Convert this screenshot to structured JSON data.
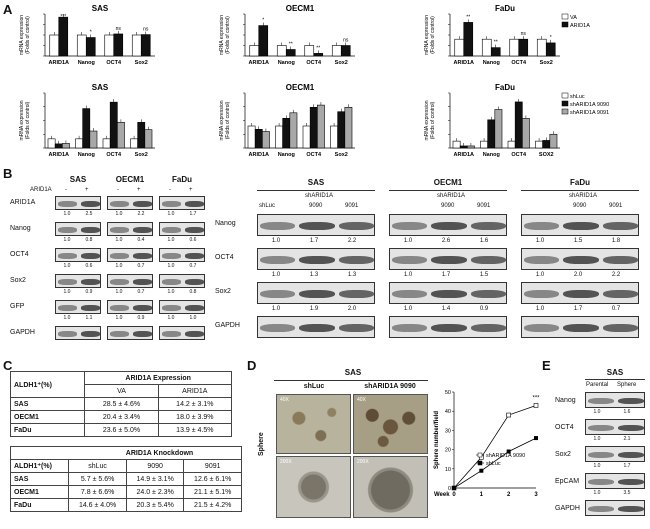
{
  "panels": {
    "a": "A",
    "b": "B",
    "c": "C",
    "d": "D",
    "e": "E"
  },
  "colors": {
    "open": "#ffffff",
    "black": "#111111",
    "gray": "#a8a8a8"
  },
  "chartA": {
    "titles": [
      "SAS",
      "OECM1",
      "FaDu"
    ],
    "ylabel_line1": "mRNA expression",
    "ylabel_line2": "(Folds of control)",
    "categories": [
      "ARID1A",
      "Nanog",
      "OCT4",
      "Sox2"
    ],
    "legend": [
      "VA",
      "ARID1A"
    ],
    "sig": [
      [
        "***",
        "*",
        "ns",
        "ns"
      ],
      [
        "*",
        "**",
        "**",
        "ns"
      ],
      [
        "**",
        "**",
        "ns",
        "*"
      ]
    ]
  },
  "chartB": {
    "titles": [
      "SAS",
      "OECM1",
      "FaDu"
    ],
    "ylabel_line1": "mRNA expression",
    "ylabel_line2": "(Folds of control)",
    "categories": [
      [
        "ARID1A",
        "Nanog",
        "OCT4",
        "Sox2"
      ],
      [
        "ARID1A",
        "Nanog",
        "OCT4",
        "Sox2"
      ],
      [
        "ARID1A",
        "Nanog",
        "OCT4",
        "SOX2"
      ]
    ],
    "legend": [
      "shLuc",
      "shARID1A 9090",
      "shARID1A 9091"
    ]
  },
  "chart_data": [
    {
      "type": "bar",
      "title": "SAS",
      "categories": [
        "ARID1A",
        "Nanog",
        "OCT4",
        "Sox2"
      ],
      "ylim": [
        0,
        2.0
      ],
      "series": [
        {
          "name": "VA",
          "values": [
            1,
            1,
            1,
            1
          ]
        },
        {
          "name": "ARID1A",
          "values": [
            1.85,
            0.88,
            1.05,
            1.02
          ]
        }
      ]
    },
    {
      "type": "bar",
      "title": "OECM1",
      "categories": [
        "ARID1A",
        "Nanog",
        "OCT4",
        "Sox2"
      ],
      "ylim": [
        0,
        4.0
      ],
      "series": [
        {
          "name": "VA",
          "values": [
            1,
            1,
            1,
            1
          ]
        },
        {
          "name": "ARID1A",
          "values": [
            2.9,
            0.62,
            0.25,
            1.0
          ]
        }
      ]
    },
    {
      "type": "bar",
      "title": "FaDu",
      "categories": [
        "ARID1A",
        "Nanog",
        "OCT4",
        "Sox2"
      ],
      "ylim": [
        0,
        2.5
      ],
      "series": [
        {
          "name": "VA",
          "values": [
            1,
            1,
            1,
            1
          ]
        },
        {
          "name": "ARID1A",
          "values": [
            2.0,
            0.5,
            1.0,
            0.78
          ]
        }
      ]
    },
    {
      "type": "bar",
      "title": "SAS",
      "categories": [
        "ARID1A",
        "Nanog",
        "OCT4",
        "Sox2"
      ],
      "ylim": [
        0,
        6
      ],
      "series": [
        {
          "name": "shLuc",
          "values": [
            1,
            1,
            1,
            1
          ]
        },
        {
          "name": "shARID1A 9090",
          "values": [
            0.45,
            4.3,
            5.0,
            2.8
          ]
        },
        {
          "name": "shARID1A 9091",
          "values": [
            0.5,
            1.85,
            2.8,
            2.0
          ]
        }
      ]
    },
    {
      "type": "bar",
      "title": "OECM1",
      "categories": [
        "ARID1A",
        "Nanog",
        "OCT4",
        "Sox2"
      ],
      "ylim": [
        0,
        2.5
      ],
      "series": [
        {
          "name": "shLuc",
          "values": [
            1,
            1,
            1,
            1
          ]
        },
        {
          "name": "shARID1A 9090",
          "values": [
            0.85,
            1.35,
            1.85,
            1.65
          ]
        },
        {
          "name": "shARID1A 9091",
          "values": [
            0.75,
            1.6,
            1.95,
            1.85
          ]
        }
      ]
    },
    {
      "type": "bar",
      "title": "FaDu",
      "categories": [
        "ARID1A",
        "Nanog",
        "OCT4",
        "SOX2"
      ],
      "ylim": [
        0,
        8
      ],
      "series": [
        {
          "name": "shLuc",
          "values": [
            1,
            1,
            1,
            1
          ]
        },
        {
          "name": "shARID1A 9090",
          "values": [
            0.3,
            4.1,
            6.7,
            1.1
          ]
        },
        {
          "name": "shARID1A 9091",
          "values": [
            0.3,
            5.6,
            4.3,
            2.0
          ]
        }
      ]
    },
    {
      "type": "line",
      "title": "",
      "xlabel": "Week",
      "ylabel": "Sphere number/field",
      "x": [
        0,
        1,
        2,
        3
      ],
      "ylim": [
        0,
        50
      ],
      "series": [
        {
          "name": "shARID1A 9090",
          "values": [
            0,
            16,
            38,
            43
          ]
        },
        {
          "name": "shLuc",
          "values": [
            0,
            9,
            19,
            26
          ]
        }
      ]
    }
  ],
  "blotLeft": {
    "groups": [
      "SAS",
      "OECM1",
      "FaDu"
    ],
    "rowLabel": "ARID1A",
    "signs": [
      "-",
      "+"
    ],
    "rows": [
      {
        "label": "ARID1A",
        "nums": [
          "1.0",
          "2.5",
          "1.0",
          "2.2",
          "1.0",
          "1.7"
        ]
      },
      {
        "label": "Nanog",
        "nums": [
          "1.0",
          "0.8",
          "1.0",
          "0.4",
          "1.0",
          "0.6"
        ]
      },
      {
        "label": "OCT4",
        "nums": [
          "1.0",
          "0.6",
          "1.0",
          "0.7",
          "1.0",
          "0.7"
        ]
      },
      {
        "label": "Sox2",
        "nums": [
          "1.0",
          "0.9",
          "1.0",
          "0.7",
          "1.0",
          "0.8"
        ]
      },
      {
        "label": "GFP",
        "nums": [
          "1.0",
          "1.1",
          "1.0",
          "0.9",
          "1.0",
          "1.0"
        ]
      },
      {
        "label": "GAPDH",
        "nums": []
      }
    ]
  },
  "blotRight": {
    "groups": [
      "SAS",
      "OECM1",
      "FaDu"
    ],
    "shLuc": "shLuc",
    "shARID1A": "shARID1A",
    "clones": [
      "9090",
      "9091"
    ],
    "rows": [
      {
        "label": "Nanog",
        "nums": [
          "1.0",
          "1.7",
          "2.2",
          "1.0",
          "2.6",
          "1.6",
          "1.0",
          "1.5",
          "1.8"
        ]
      },
      {
        "label": "OCT4",
        "nums": [
          "1.0",
          "1.3",
          "1.3",
          "1.0",
          "1.7",
          "1.5",
          "1.0",
          "2.0",
          "2.2"
        ]
      },
      {
        "label": "Sox2",
        "nums": [
          "1.0",
          "1.9",
          "2.0",
          "1.0",
          "1.4",
          "0.9",
          "1.0",
          "1.7",
          "0.7"
        ]
      },
      {
        "label": "GAPDH",
        "nums": []
      }
    ]
  },
  "table1": {
    "header": [
      "ALDH1⁺(%)",
      "ARID1A Expression"
    ],
    "sub": [
      "VA",
      "ARID1A"
    ],
    "rows": [
      [
        "SAS",
        "28.5 ± 4.6%",
        "14.2 ± 3.1%"
      ],
      [
        "OECM1",
        "20.4 ± 3.4%",
        "18.0 ± 3.9%"
      ],
      [
        "FaDu",
        "23.6 ± 5.0%",
        "13.9 ± 4.5%"
      ]
    ]
  },
  "table2": {
    "header": "ARID1A Knockdown",
    "cols": [
      "ALDH1⁺(%)",
      "shLuc",
      "9090",
      "9091"
    ],
    "rows": [
      [
        "SAS",
        "5.7 ± 5.6%",
        "14.9 ± 3.1%",
        "12.6 ± 6.1%"
      ],
      [
        "OECM1",
        "7.8 ± 6.6%",
        "24.0 ± 2.3%",
        "21.1 ± 5.1%"
      ],
      [
        "FaDu",
        "14.6 ± 4.0%",
        "20.3 ± 5.4%",
        "21.5 ± 4.2%"
      ]
    ]
  },
  "panelD": {
    "title": "SAS",
    "cols": [
      "shLuc",
      "shARID1A 9090"
    ],
    "rowLabel": "Sphere",
    "mag": [
      "40X",
      "40X",
      "200X",
      "200X"
    ],
    "ylabel": "Sphere number/field",
    "xlabel": "Week",
    "ticks": [
      "0",
      "1",
      "2",
      "3"
    ],
    "yticks": [
      "0",
      "10",
      "20",
      "30",
      "40",
      "50"
    ],
    "sig": "***",
    "legend": [
      "shARID1A 9090",
      "shLuc"
    ]
  },
  "panelE": {
    "title": "SAS",
    "cols": [
      "Parental",
      "Sphere"
    ],
    "rows": [
      {
        "label": "Nanog",
        "nums": [
          "1.0",
          "1.6"
        ]
      },
      {
        "label": "OCT4",
        "nums": [
          "1.0",
          "2.1"
        ]
      },
      {
        "label": "Sox2",
        "nums": [
          "1.0",
          "1.7"
        ]
      },
      {
        "label": "EpCAM",
        "nums": [
          "1.0",
          "3.5"
        ]
      },
      {
        "label": "GAPDH",
        "nums": []
      }
    ]
  }
}
